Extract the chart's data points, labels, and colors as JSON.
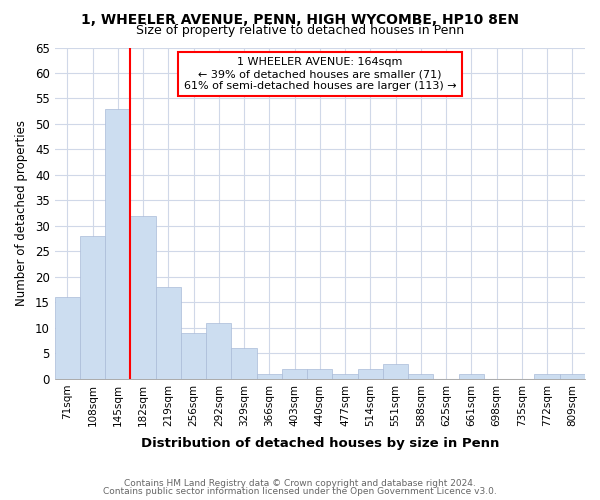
{
  "title1": "1, WHEELER AVENUE, PENN, HIGH WYCOMBE, HP10 8EN",
  "title2": "Size of property relative to detached houses in Penn",
  "xlabel": "Distribution of detached houses by size in Penn",
  "ylabel": "Number of detached properties",
  "categories": [
    "71sqm",
    "108sqm",
    "145sqm",
    "182sqm",
    "219sqm",
    "256sqm",
    "292sqm",
    "329sqm",
    "366sqm",
    "403sqm",
    "440sqm",
    "477sqm",
    "514sqm",
    "551sqm",
    "588sqm",
    "625sqm",
    "661sqm",
    "698sqm",
    "735sqm",
    "772sqm",
    "809sqm"
  ],
  "values": [
    16,
    28,
    53,
    32,
    18,
    9,
    11,
    6,
    1,
    2,
    2,
    1,
    2,
    3,
    1,
    0,
    1,
    0,
    0,
    1,
    1
  ],
  "bar_color": "#ccddf0",
  "bar_edge_color": "#aabbd8",
  "vline_x": 2.5,
  "vline_color": "red",
  "ylim": [
    0,
    65
  ],
  "yticks": [
    0,
    5,
    10,
    15,
    20,
    25,
    30,
    35,
    40,
    45,
    50,
    55,
    60,
    65
  ],
  "annotation_title": "1 WHEELER AVENUE: 164sqm",
  "annotation_line1": "← 39% of detached houses are smaller (71)",
  "annotation_line2": "61% of semi-detached houses are larger (113) →",
  "annotation_box_color": "red",
  "footer1": "Contains HM Land Registry data © Crown copyright and database right 2024.",
  "footer2": "Contains public sector information licensed under the Open Government Licence v3.0.",
  "bg_color": "#ffffff",
  "plot_bg_color": "#ffffff",
  "grid_color": "#d0d8e8"
}
